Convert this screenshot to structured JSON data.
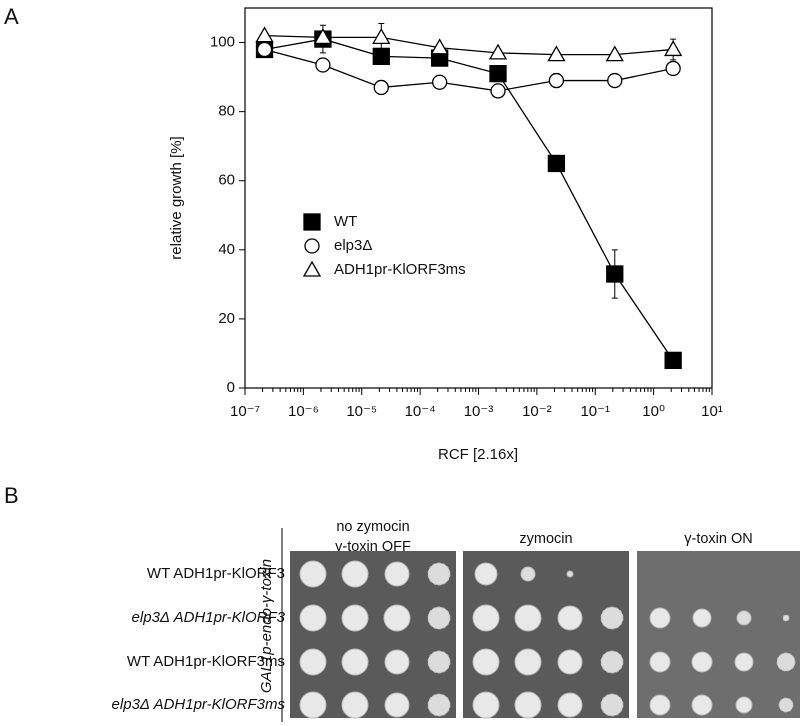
{
  "panels": [
    "A",
    "B"
  ],
  "chart_data": {
    "type": "line",
    "x_label": "RCF [2.16x]",
    "y_label": "relative growth [%]",
    "x": [
      2.16e-07,
      2.16e-06,
      2.16e-05,
      0.000216,
      0.00216,
      0.0216,
      0.216,
      2.16
    ],
    "xscale": "log",
    "xlim": [
      1e-07,
      10
    ],
    "xticks": [
      {
        "value": 1e-07,
        "label": "10⁻⁷"
      },
      {
        "value": 1e-06,
        "label": "10⁻⁶"
      },
      {
        "value": 1e-05,
        "label": "10⁻⁵"
      },
      {
        "value": 0.0001,
        "label": "10⁻⁴"
      },
      {
        "value": 0.001,
        "label": "10⁻³"
      },
      {
        "value": 0.01,
        "label": "10⁻²"
      },
      {
        "value": 0.1,
        "label": "10⁻¹"
      },
      {
        "value": 1,
        "label": "10⁰"
      },
      {
        "value": 10,
        "label": "10¹"
      }
    ],
    "ylim": [
      0,
      110
    ],
    "yticks": [
      0,
      20,
      40,
      60,
      80,
      100
    ],
    "legend_position": "center-left",
    "series": [
      {
        "name": "WT",
        "color": "#000000",
        "marker": "square-filled",
        "values": [
          98,
          101,
          96,
          95.5,
          91,
          65,
          33,
          8
        ],
        "errors": [
          1,
          4,
          2,
          1.5,
          2,
          1,
          7,
          1
        ]
      },
      {
        "name": "elp3Δ",
        "color": "#000000",
        "marker": "circle-open",
        "values": [
          98,
          93.5,
          87,
          88.5,
          86,
          89,
          89,
          92.5
        ],
        "errors": [
          1,
          1,
          2,
          1,
          1,
          2,
          1.5,
          1
        ]
      },
      {
        "name": "ADH1pr-KlORF3ms",
        "color": "#000000",
        "marker": "triangle-open",
        "values": [
          102,
          101.5,
          101.5,
          98.5,
          97,
          96.5,
          96.5,
          98
        ],
        "errors": [
          1,
          1,
          4,
          1,
          1,
          1,
          1,
          3
        ]
      }
    ]
  },
  "spot_assay": {
    "side_label": "GAL1p-endo-γ-toxin",
    "columns": [
      "no zymocin γ-toxin OFF",
      "zymocin",
      "γ-toxin ON"
    ],
    "rows": [
      "WT ADH1pr-KlORF3",
      "elp3Δ ADH1pr-KlORF3",
      "WT ADH1pr-KlORF3ms",
      "elp3Δ ADH1pr-KlORF3ms"
    ]
  }
}
